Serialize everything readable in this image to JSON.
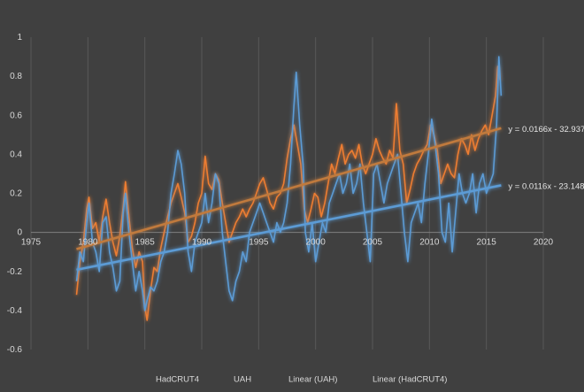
{
  "chart_data": {
    "type": "line",
    "title": "",
    "xlabel": "",
    "ylabel": "",
    "xlim": [
      1975,
      2020
    ],
    "ylim": [
      -0.6,
      1
    ],
    "x_ticks": [
      "1975",
      "1980",
      "1985",
      "1990",
      "1995",
      "2000",
      "2005",
      "2010",
      "2015",
      "2020"
    ],
    "y_ticks": [
      "1",
      "0.8",
      "0.6",
      "0.4",
      "0.2",
      "0",
      "-0.2",
      "-0.4",
      "-0.6"
    ],
    "grid": "vertical",
    "legend_position": "bottom",
    "legend": [
      "HadCRUT4",
      "UAH",
      "Linear (UAH)",
      "Linear (HadCRUT4)"
    ],
    "colors": {
      "background": "#404040",
      "grid": "#595959",
      "hadcrut4": "#ed7d31",
      "uah": "#5b9bd5",
      "trend_uah": "#5b9bd5",
      "trend_hadcrut4": "#c07a3e"
    },
    "trendlines": [
      {
        "series": "HadCRUT4",
        "label": "Linear (HadCRUT4)",
        "slope": 0.0166,
        "intercept": -32.937,
        "equation": "y = 0.0166x - 32.937"
      },
      {
        "series": "UAH",
        "label": "Linear (UAH)",
        "slope": 0.0116,
        "intercept": -23.148,
        "equation": "y = 0.0116x - 23.148"
      }
    ],
    "x_range": [
      1979,
      2016.3
    ],
    "series": [
      {
        "name": "HadCRUT4",
        "points": [
          [
            1979.0,
            -0.32
          ],
          [
            1979.3,
            -0.15
          ],
          [
            1979.6,
            -0.05
          ],
          [
            1979.9,
            0.12
          ],
          [
            1980.1,
            0.18
          ],
          [
            1980.4,
            0.02
          ],
          [
            1980.7,
            0.05
          ],
          [
            1981.0,
            -0.05
          ],
          [
            1981.3,
            0.08
          ],
          [
            1981.6,
            0.17
          ],
          [
            1981.9,
            0.05
          ],
          [
            1982.2,
            -0.05
          ],
          [
            1982.5,
            -0.12
          ],
          [
            1982.8,
            -0.02
          ],
          [
            1983.1,
            0.13
          ],
          [
            1983.3,
            0.26
          ],
          [
            1983.6,
            0.08
          ],
          [
            1983.9,
            -0.08
          ],
          [
            1984.2,
            -0.18
          ],
          [
            1984.5,
            -0.1
          ],
          [
            1984.8,
            -0.15
          ],
          [
            1985.0,
            -0.38
          ],
          [
            1985.2,
            -0.45
          ],
          [
            1985.5,
            -0.3
          ],
          [
            1985.8,
            -0.18
          ],
          [
            1986.1,
            -0.2
          ],
          [
            1986.4,
            -0.08
          ],
          [
            1986.7,
            0.0
          ],
          [
            1987.0,
            0.08
          ],
          [
            1987.3,
            0.15
          ],
          [
            1987.6,
            0.2
          ],
          [
            1987.9,
            0.25
          ],
          [
            1988.2,
            0.18
          ],
          [
            1988.5,
            0.1
          ],
          [
            1988.8,
            -0.05
          ],
          [
            1989.1,
            -0.02
          ],
          [
            1989.4,
            0.05
          ],
          [
            1989.7,
            0.15
          ],
          [
            1990.0,
            0.2
          ],
          [
            1990.3,
            0.39
          ],
          [
            1990.6,
            0.25
          ],
          [
            1990.9,
            0.22
          ],
          [
            1991.2,
            0.3
          ],
          [
            1991.5,
            0.27
          ],
          [
            1991.8,
            0.15
          ],
          [
            1992.1,
            0.05
          ],
          [
            1992.4,
            -0.05
          ],
          [
            1992.7,
            0.0
          ],
          [
            1993.0,
            0.05
          ],
          [
            1993.3,
            0.08
          ],
          [
            1993.6,
            0.12
          ],
          [
            1993.9,
            0.08
          ],
          [
            1994.2,
            0.12
          ],
          [
            1994.5,
            0.15
          ],
          [
            1994.8,
            0.2
          ],
          [
            1995.1,
            0.25
          ],
          [
            1995.4,
            0.28
          ],
          [
            1995.7,
            0.22
          ],
          [
            1996.0,
            0.15
          ],
          [
            1996.3,
            0.12
          ],
          [
            1996.6,
            0.18
          ],
          [
            1996.9,
            0.2
          ],
          [
            1997.2,
            0.25
          ],
          [
            1997.5,
            0.38
          ],
          [
            1997.8,
            0.48
          ],
          [
            1998.1,
            0.55
          ],
          [
            1998.4,
            0.45
          ],
          [
            1998.7,
            0.35
          ],
          [
            1999.0,
            0.12
          ],
          [
            1999.3,
            0.05
          ],
          [
            1999.6,
            0.12
          ],
          [
            1999.9,
            0.2
          ],
          [
            2000.2,
            0.18
          ],
          [
            2000.5,
            0.08
          ],
          [
            2000.8,
            0.15
          ],
          [
            2001.1,
            0.25
          ],
          [
            2001.4,
            0.35
          ],
          [
            2001.7,
            0.3
          ],
          [
            2002.0,
            0.38
          ],
          [
            2002.3,
            0.45
          ],
          [
            2002.6,
            0.35
          ],
          [
            2002.9,
            0.4
          ],
          [
            2003.2,
            0.42
          ],
          [
            2003.5,
            0.38
          ],
          [
            2003.8,
            0.45
          ],
          [
            2004.1,
            0.35
          ],
          [
            2004.4,
            0.3
          ],
          [
            2004.7,
            0.35
          ],
          [
            2005.0,
            0.4
          ],
          [
            2005.3,
            0.48
          ],
          [
            2005.6,
            0.42
          ],
          [
            2005.9,
            0.38
          ],
          [
            2006.2,
            0.35
          ],
          [
            2006.5,
            0.42
          ],
          [
            2006.8,
            0.38
          ],
          [
            2007.1,
            0.66
          ],
          [
            2007.4,
            0.42
          ],
          [
            2007.7,
            0.35
          ],
          [
            2008.0,
            0.15
          ],
          [
            2008.3,
            0.22
          ],
          [
            2008.6,
            0.3
          ],
          [
            2008.9,
            0.35
          ],
          [
            2009.2,
            0.38
          ],
          [
            2009.5,
            0.42
          ],
          [
            2009.8,
            0.45
          ],
          [
            2010.1,
            0.55
          ],
          [
            2010.4,
            0.5
          ],
          [
            2010.7,
            0.42
          ],
          [
            2011.0,
            0.25
          ],
          [
            2011.3,
            0.3
          ],
          [
            2011.6,
            0.35
          ],
          [
            2011.9,
            0.3
          ],
          [
            2012.2,
            0.28
          ],
          [
            2012.5,
            0.4
          ],
          [
            2012.8,
            0.48
          ],
          [
            2013.1,
            0.45
          ],
          [
            2013.4,
            0.4
          ],
          [
            2013.7,
            0.5
          ],
          [
            2014.0,
            0.42
          ],
          [
            2014.3,
            0.48
          ],
          [
            2014.6,
            0.52
          ],
          [
            2014.9,
            0.55
          ],
          [
            2015.2,
            0.5
          ],
          [
            2015.5,
            0.6
          ],
          [
            2015.8,
            0.7
          ],
          [
            2016.0,
            0.85
          ],
          [
            2016.2,
            0.78
          ]
        ]
      },
      {
        "name": "UAH",
        "points": [
          [
            1979.0,
            -0.25
          ],
          [
            1979.3,
            -0.1
          ],
          [
            1979.6,
            -0.15
          ],
          [
            1979.9,
            0.05
          ],
          [
            1980.1,
            0.15
          ],
          [
            1980.4,
            -0.05
          ],
          [
            1980.7,
            -0.1
          ],
          [
            1981.0,
            -0.2
          ],
          [
            1981.3,
            0.05
          ],
          [
            1981.6,
            0.08
          ],
          [
            1981.9,
            -0.1
          ],
          [
            1982.2,
            -0.18
          ],
          [
            1982.5,
            -0.3
          ],
          [
            1982.8,
            -0.25
          ],
          [
            1983.1,
            0.1
          ],
          [
            1983.3,
            0.2
          ],
          [
            1983.6,
            0.0
          ],
          [
            1983.9,
            -0.15
          ],
          [
            1984.2,
            -0.3
          ],
          [
            1984.5,
            -0.2
          ],
          [
            1984.8,
            -0.3
          ],
          [
            1985.0,
            -0.4
          ],
          [
            1985.2,
            -0.35
          ],
          [
            1985.5,
            -0.28
          ],
          [
            1985.8,
            -0.3
          ],
          [
            1986.1,
            -0.25
          ],
          [
            1986.4,
            -0.15
          ],
          [
            1986.7,
            -0.1
          ],
          [
            1987.0,
            0.0
          ],
          [
            1987.3,
            0.2
          ],
          [
            1987.6,
            0.3
          ],
          [
            1987.9,
            0.42
          ],
          [
            1988.2,
            0.35
          ],
          [
            1988.5,
            0.2
          ],
          [
            1988.8,
            -0.1
          ],
          [
            1989.1,
            -0.2
          ],
          [
            1989.4,
            -0.05
          ],
          [
            1989.7,
            0.0
          ],
          [
            1990.0,
            0.05
          ],
          [
            1990.3,
            0.2
          ],
          [
            1990.6,
            0.05
          ],
          [
            1990.9,
            0.15
          ],
          [
            1991.2,
            0.3
          ],
          [
            1991.5,
            0.25
          ],
          [
            1991.8,
            0.0
          ],
          [
            1992.1,
            -0.15
          ],
          [
            1992.4,
            -0.3
          ],
          [
            1992.7,
            -0.35
          ],
          [
            1993.0,
            -0.25
          ],
          [
            1993.3,
            -0.2
          ],
          [
            1993.6,
            -0.1
          ],
          [
            1993.9,
            -0.15
          ],
          [
            1994.2,
            0.0
          ],
          [
            1994.5,
            0.05
          ],
          [
            1994.8,
            0.1
          ],
          [
            1995.1,
            0.15
          ],
          [
            1995.4,
            0.1
          ],
          [
            1995.7,
            0.05
          ],
          [
            1996.0,
            0.0
          ],
          [
            1996.3,
            -0.05
          ],
          [
            1996.6,
            0.05
          ],
          [
            1996.9,
            0.0
          ],
          [
            1997.2,
            0.05
          ],
          [
            1997.5,
            0.15
          ],
          [
            1997.8,
            0.35
          ],
          [
            1998.1,
            0.65
          ],
          [
            1998.3,
            0.82
          ],
          [
            1998.6,
            0.55
          ],
          [
            1998.9,
            0.35
          ],
          [
            1999.1,
            0.0
          ],
          [
            1999.4,
            -0.1
          ],
          [
            1999.7,
            0.05
          ],
          [
            2000.0,
            -0.15
          ],
          [
            2000.3,
            -0.05
          ],
          [
            2000.6,
            0.05
          ],
          [
            2000.9,
            0.0
          ],
          [
            2001.2,
            0.15
          ],
          [
            2001.5,
            0.2
          ],
          [
            2001.8,
            0.25
          ],
          [
            2002.1,
            0.3
          ],
          [
            2002.4,
            0.2
          ],
          [
            2002.7,
            0.25
          ],
          [
            2003.0,
            0.35
          ],
          [
            2003.3,
            0.2
          ],
          [
            2003.6,
            0.25
          ],
          [
            2003.9,
            0.35
          ],
          [
            2004.2,
            0.15
          ],
          [
            2004.5,
            0.0
          ],
          [
            2004.8,
            -0.15
          ],
          [
            2005.1,
            0.3
          ],
          [
            2005.4,
            0.35
          ],
          [
            2005.7,
            0.25
          ],
          [
            2006.0,
            0.15
          ],
          [
            2006.3,
            0.25
          ],
          [
            2006.6,
            0.3
          ],
          [
            2006.9,
            0.35
          ],
          [
            2007.2,
            0.4
          ],
          [
            2007.5,
            0.2
          ],
          [
            2007.8,
            0.0
          ],
          [
            2008.1,
            -0.15
          ],
          [
            2008.4,
            0.05
          ],
          [
            2008.7,
            0.1
          ],
          [
            2009.0,
            0.15
          ],
          [
            2009.3,
            0.05
          ],
          [
            2009.6,
            0.25
          ],
          [
            2009.9,
            0.4
          ],
          [
            2010.2,
            0.58
          ],
          [
            2010.5,
            0.45
          ],
          [
            2010.8,
            0.3
          ],
          [
            2011.1,
            0.0
          ],
          [
            2011.4,
            -0.05
          ],
          [
            2011.7,
            0.15
          ],
          [
            2012.0,
            -0.1
          ],
          [
            2012.3,
            0.1
          ],
          [
            2012.6,
            0.3
          ],
          [
            2012.9,
            0.2
          ],
          [
            2013.2,
            0.15
          ],
          [
            2013.5,
            0.2
          ],
          [
            2013.8,
            0.3
          ],
          [
            2014.1,
            0.1
          ],
          [
            2014.4,
            0.25
          ],
          [
            2014.7,
            0.3
          ],
          [
            2015.0,
            0.2
          ],
          [
            2015.3,
            0.25
          ],
          [
            2015.6,
            0.3
          ],
          [
            2015.9,
            0.55
          ],
          [
            2016.1,
            0.9
          ],
          [
            2016.3,
            0.7
          ]
        ]
      }
    ]
  }
}
